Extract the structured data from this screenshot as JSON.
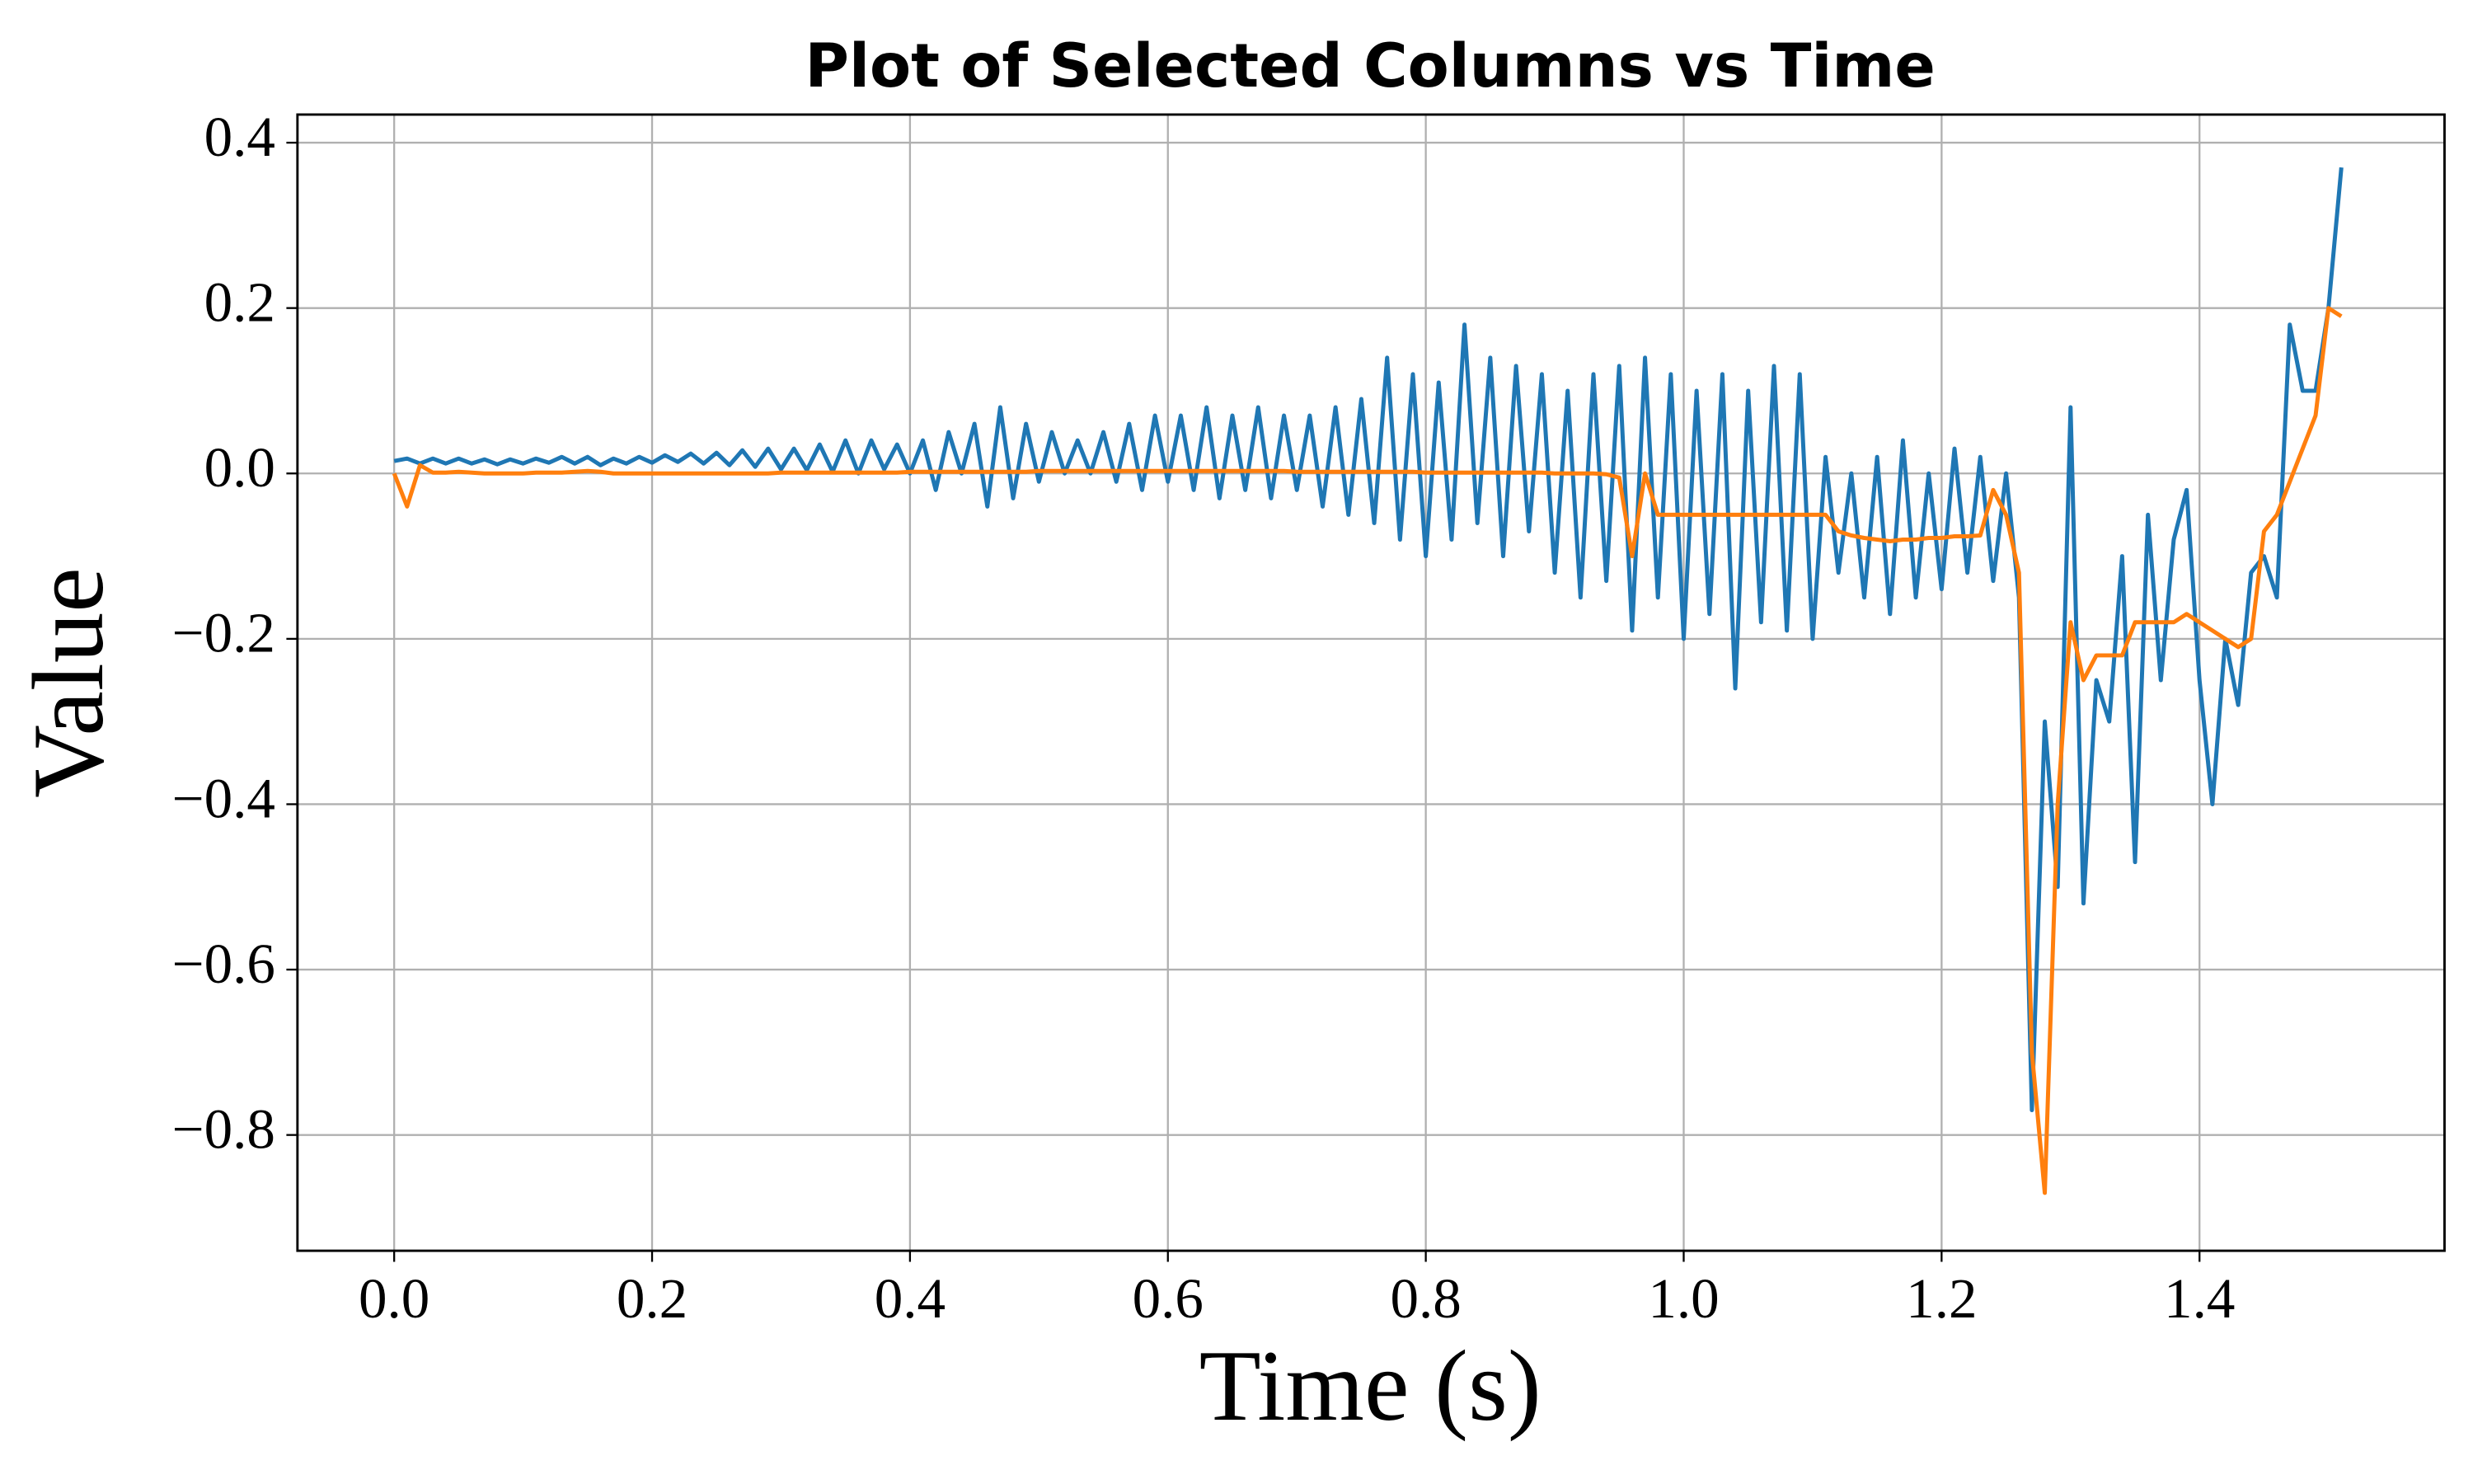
{
  "chart_data": {
    "type": "line",
    "title": "Plot of Selected Columns vs Time",
    "x_label": "Time (s)",
    "y_label": "Value",
    "xlim": [
      -0.075,
      1.59
    ],
    "ylim": [
      -0.94,
      0.434
    ],
    "xticks": [
      {
        "value": 0,
        "label": "0.0"
      },
      0.2,
      0.4,
      0.6,
      0.8,
      {
        "value": 1,
        "label": "1.0"
      },
      1.2,
      1.4
    ],
    "yticks": [
      {
        "value": -0.8,
        "label": "−0.8"
      },
      {
        "value": -0.6,
        "label": "−0.6"
      },
      {
        "value": -0.4,
        "label": "−0.4"
      },
      {
        "value": -0.2,
        "label": "−0.2"
      },
      {
        "value": 0,
        "label": "0.0"
      },
      0.2,
      0.4
    ],
    "grid": true,
    "x": [
      0,
      0.01,
      0.02,
      0.03,
      0.04,
      0.05,
      0.06,
      0.07,
      0.08,
      0.09,
      0.1,
      0.11,
      0.12,
      0.13,
      0.14,
      0.15,
      0.16,
      0.17,
      0.18,
      0.19,
      0.2,
      0.21,
      0.22,
      0.23,
      0.24,
      0.25,
      0.26,
      0.27,
      0.28,
      0.29,
      0.3,
      0.31,
      0.32,
      0.33,
      0.34,
      0.35,
      0.36,
      0.37,
      0.38,
      0.39,
      0.4,
      0.41,
      0.42,
      0.43,
      0.44,
      0.45,
      0.46,
      0.47,
      0.48,
      0.49,
      0.5,
      0.51,
      0.52,
      0.53,
      0.54,
      0.55,
      0.56,
      0.57,
      0.58,
      0.59,
      0.6,
      0.61,
      0.62,
      0.63,
      0.64,
      0.65,
      0.66,
      0.67,
      0.68,
      0.69,
      0.7,
      0.71,
      0.72,
      0.73,
      0.74,
      0.75,
      0.76,
      0.77,
      0.78,
      0.79,
      0.8,
      0.81,
      0.82,
      0.83,
      0.84,
      0.85,
      0.86,
      0.87,
      0.88,
      0.89,
      0.9,
      0.91,
      0.92,
      0.93,
      0.94,
      0.95,
      0.96,
      0.97,
      0.98,
      0.99,
      1,
      1.01,
      1.02,
      1.03,
      1.04,
      1.05,
      1.06,
      1.07,
      1.08,
      1.09,
      1.1,
      1.11,
      1.12,
      1.13,
      1.14,
      1.15,
      1.16,
      1.17,
      1.18,
      1.19,
      1.2,
      1.21,
      1.22,
      1.23,
      1.24,
      1.25,
      1.26,
      1.27,
      1.28,
      1.29,
      1.3,
      1.31,
      1.32,
      1.33,
      1.34,
      1.35,
      1.36,
      1.37,
      1.38,
      1.39,
      1.4,
      1.41,
      1.42,
      1.43,
      1.44,
      1.45,
      1.46,
      1.47,
      1.48,
      1.49,
      1.5,
      1.51
    ],
    "series": [
      {
        "color": "#1f77b4",
        "values": [
          0.015,
          0.018,
          0.012,
          0.018,
          0.012,
          0.018,
          0.012,
          0.017,
          0.011,
          0.017,
          0.012,
          0.018,
          0.013,
          0.02,
          0.012,
          0.02,
          0.01,
          0.018,
          0.012,
          0.02,
          0.013,
          0.022,
          0.014,
          0.024,
          0.012,
          0.025,
          0.01,
          0.028,
          0.008,
          0.03,
          0.005,
          0.03,
          0.004,
          0.035,
          0.002,
          0.04,
          0.0,
          0.04,
          0.005,
          0.035,
          0.0,
          0.04,
          -0.02,
          0.05,
          0.0,
          0.06,
          -0.04,
          0.08,
          -0.03,
          0.06,
          -0.01,
          0.05,
          0.0,
          0.04,
          0.0,
          0.05,
          -0.01,
          0.06,
          -0.02,
          0.07,
          -0.01,
          0.07,
          -0.02,
          0.08,
          -0.03,
          0.07,
          -0.02,
          0.08,
          -0.03,
          0.07,
          -0.02,
          0.07,
          -0.04,
          0.08,
          -0.05,
          0.09,
          -0.06,
          0.14,
          -0.08,
          0.12,
          -0.1,
          0.11,
          -0.08,
          0.18,
          -0.06,
          0.14,
          -0.1,
          0.13,
          -0.07,
          0.12,
          -0.12,
          0.1,
          -0.15,
          0.12,
          -0.13,
          0.13,
          -0.19,
          0.14,
          -0.15,
          0.12,
          -0.2,
          0.1,
          -0.17,
          0.12,
          -0.26,
          0.1,
          -0.18,
          0.13,
          -0.19,
          0.12,
          -0.2,
          0.02,
          -0.12,
          0.0,
          -0.15,
          0.02,
          -0.17,
          0.04,
          -0.15,
          0.0,
          -0.14,
          0.03,
          -0.12,
          0.02,
          -0.13,
          0.0,
          -0.15,
          -0.77,
          -0.3,
          -0.5,
          0.08,
          -0.52,
          -0.25,
          -0.3,
          -0.1,
          -0.47,
          -0.05,
          -0.25,
          -0.08,
          -0.02,
          -0.25,
          -0.4,
          -0.2,
          -0.28,
          -0.12,
          -0.1,
          -0.15,
          0.18,
          0.1,
          0.1,
          0.2,
          0.37
        ]
      },
      {
        "color": "#ff7f0e",
        "values": [
          0,
          -0.04,
          0.01,
          0.001,
          0.001,
          0.002,
          0.001,
          0,
          0,
          0,
          0,
          0.001,
          0.001,
          0.001,
          0.002,
          0.003,
          0.002,
          0,
          0,
          0,
          0,
          0,
          0,
          0,
          0,
          0,
          0,
          0,
          0,
          0,
          0.001,
          0.001,
          0.001,
          0.001,
          0.001,
          0.001,
          0.001,
          0.001,
          0.001,
          0.001,
          0.002,
          0.002,
          0.002,
          0.002,
          0.002,
          0.002,
          0.002,
          0.002,
          0.002,
          0.002,
          0.003,
          0.003,
          0.003,
          0.003,
          0.003,
          0.003,
          0.003,
          0.003,
          0.003,
          0.003,
          0.003,
          0.003,
          0.003,
          0.003,
          0.003,
          0.003,
          0.003,
          0.003,
          0.003,
          0.003,
          0.002,
          0.002,
          0.002,
          0.002,
          0.002,
          0.002,
          0.002,
          0.002,
          0.002,
          0.002,
          0.001,
          0.001,
          0.001,
          0.001,
          0.001,
          0.001,
          0.001,
          0.001,
          0.001,
          0.001,
          0,
          0,
          0,
          0,
          -0.001,
          -0.005,
          -0.1,
          0.0,
          -0.05,
          -0.05,
          -0.05,
          -0.05,
          -0.05,
          -0.05,
          -0.05,
          -0.05,
          -0.05,
          -0.05,
          -0.05,
          -0.05,
          -0.05,
          -0.05,
          -0.07,
          -0.075,
          -0.078,
          -0.08,
          -0.082,
          -0.08,
          -0.08,
          -0.078,
          -0.078,
          -0.076,
          -0.076,
          -0.075,
          -0.02,
          -0.05,
          -0.12,
          -0.7,
          -0.87,
          -0.4,
          -0.18,
          -0.25,
          -0.22,
          -0.22,
          -0.22,
          -0.18,
          -0.18,
          -0.18,
          -0.18,
          -0.17,
          -0.18,
          -0.19,
          -0.2,
          -0.21,
          -0.2,
          -0.07,
          -0.05,
          -0.01,
          0.03,
          0.07,
          0.2,
          0.19
        ]
      }
    ]
  }
}
